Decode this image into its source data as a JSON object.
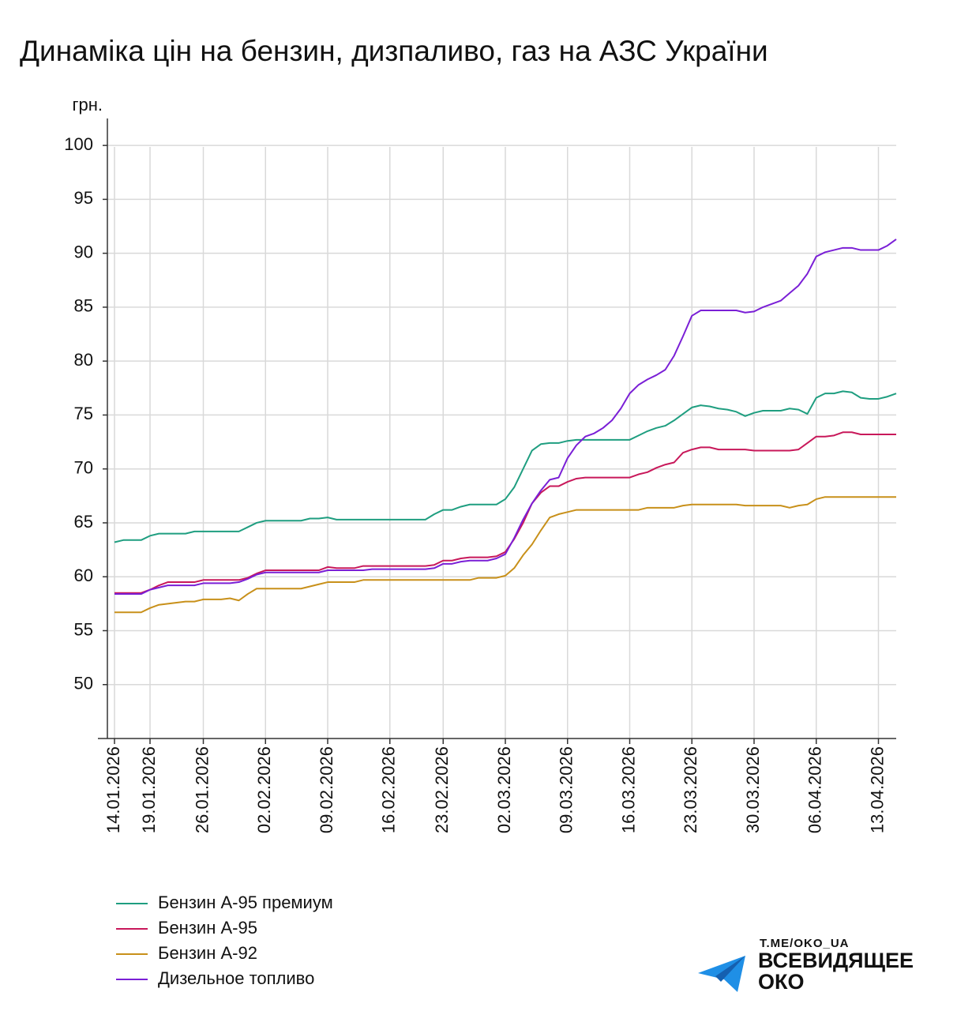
{
  "chart_data": {
    "type": "line",
    "title": "Динаміка цін на бензин, дизпаливо, газ на АЗС України",
    "y_label": "грн.",
    "categories": [
      "14.01.2026",
      null,
      null,
      null,
      "19.01.2026",
      null,
      null,
      null,
      null,
      null,
      "26.01.2026",
      null,
      null,
      null,
      null,
      null,
      null,
      "02.02.2026",
      null,
      null,
      null,
      null,
      null,
      null,
      "09.02.2026",
      null,
      null,
      null,
      null,
      null,
      null,
      "16.02.2026",
      null,
      null,
      null,
      null,
      null,
      "23.02.2026",
      null,
      null,
      null,
      null,
      null,
      null,
      "02.03.2026",
      null,
      null,
      null,
      null,
      null,
      null,
      "09.03.2026",
      null,
      null,
      null,
      null,
      null,
      null,
      "16.03.2026",
      null,
      null,
      null,
      null,
      null,
      null,
      "23.03.2026",
      null,
      null,
      null,
      null,
      null,
      null,
      "30.03.2026",
      null,
      null,
      null,
      null,
      null,
      null,
      "06.04.2026",
      null,
      null,
      null,
      null,
      null,
      null,
      "13.04.2026",
      null,
      null
    ],
    "series": [
      {
        "name": "Бензин А-95 премиум",
        "color": "#1f9e80",
        "values": [
          63.2,
          63.4,
          63.4,
          63.4,
          63.8,
          64.0,
          64.0,
          64.0,
          64.0,
          64.2,
          64.2,
          64.2,
          64.2,
          64.2,
          64.2,
          64.6,
          65.0,
          65.2,
          65.2,
          65.2,
          65.2,
          65.2,
          65.4,
          65.4,
          65.5,
          65.3,
          65.3,
          65.3,
          65.3,
          65.3,
          65.3,
          65.3,
          65.3,
          65.3,
          65.3,
          65.3,
          65.8,
          66.2,
          66.2,
          66.5,
          66.7,
          66.7,
          66.7,
          66.7,
          67.2,
          68.3,
          70.0,
          71.7,
          72.3,
          72.4,
          72.4,
          72.6,
          72.7,
          72.7,
          72.7,
          72.7,
          72.7,
          72.7,
          72.7,
          73.1,
          73.5,
          73.8,
          74.0,
          74.5,
          75.1,
          75.7,
          75.9,
          75.8,
          75.6,
          75.5,
          75.3,
          74.9,
          75.2,
          75.4,
          75.4,
          75.4,
          75.6,
          75.5,
          75.1,
          76.6,
          77.0,
          77.0,
          77.2,
          77.1,
          76.6,
          76.5,
          76.5,
          76.7,
          77.0
        ]
      },
      {
        "name": "Бензин А-95",
        "color": "#c8185a",
        "values": [
          58.5,
          58.5,
          58.5,
          58.5,
          58.8,
          59.2,
          59.5,
          59.5,
          59.5,
          59.5,
          59.7,
          59.7,
          59.7,
          59.7,
          59.7,
          59.9,
          60.3,
          60.6,
          60.6,
          60.6,
          60.6,
          60.6,
          60.6,
          60.6,
          60.9,
          60.8,
          60.8,
          60.8,
          61.0,
          61.0,
          61.0,
          61.0,
          61.0,
          61.0,
          61.0,
          61.0,
          61.1,
          61.5,
          61.5,
          61.7,
          61.8,
          61.8,
          61.8,
          61.9,
          62.3,
          63.5,
          65.0,
          66.8,
          67.8,
          68.4,
          68.4,
          68.8,
          69.1,
          69.2,
          69.2,
          69.2,
          69.2,
          69.2,
          69.2,
          69.5,
          69.7,
          70.1,
          70.4,
          70.6,
          71.5,
          71.8,
          72.0,
          72.0,
          71.8,
          71.8,
          71.8,
          71.8,
          71.7,
          71.7,
          71.7,
          71.7,
          71.7,
          71.8,
          72.4,
          73.0,
          73.0,
          73.1,
          73.4,
          73.4,
          73.2,
          73.2,
          73.2,
          73.2,
          73.2
        ]
      },
      {
        "name": "Бензин А-92",
        "color": "#c8901a",
        "values": [
          56.7,
          56.7,
          56.7,
          56.7,
          57.1,
          57.4,
          57.5,
          57.6,
          57.7,
          57.7,
          57.9,
          57.9,
          57.9,
          58.0,
          57.8,
          58.4,
          58.9,
          58.9,
          58.9,
          58.9,
          58.9,
          58.9,
          59.1,
          59.3,
          59.5,
          59.5,
          59.5,
          59.5,
          59.7,
          59.7,
          59.7,
          59.7,
          59.7,
          59.7,
          59.7,
          59.7,
          59.7,
          59.7,
          59.7,
          59.7,
          59.7,
          59.9,
          59.9,
          59.9,
          60.1,
          60.8,
          62.0,
          63.0,
          64.3,
          65.5,
          65.8,
          66.0,
          66.2,
          66.2,
          66.2,
          66.2,
          66.2,
          66.2,
          66.2,
          66.2,
          66.4,
          66.4,
          66.4,
          66.4,
          66.6,
          66.7,
          66.7,
          66.7,
          66.7,
          66.7,
          66.7,
          66.6,
          66.6,
          66.6,
          66.6,
          66.6,
          66.4,
          66.6,
          66.7,
          67.2,
          67.4,
          67.4,
          67.4,
          67.4,
          67.4,
          67.4,
          67.4,
          67.4,
          67.4
        ]
      },
      {
        "name": "Дизельное топливо",
        "color": "#7a1fd6",
        "values": [
          58.4,
          58.4,
          58.4,
          58.4,
          58.8,
          59.0,
          59.2,
          59.2,
          59.2,
          59.2,
          59.4,
          59.4,
          59.4,
          59.4,
          59.5,
          59.8,
          60.2,
          60.4,
          60.4,
          60.4,
          60.4,
          60.4,
          60.4,
          60.4,
          60.6,
          60.6,
          60.6,
          60.6,
          60.6,
          60.7,
          60.7,
          60.7,
          60.7,
          60.7,
          60.7,
          60.7,
          60.8,
          61.2,
          61.2,
          61.4,
          61.5,
          61.5,
          61.5,
          61.7,
          62.1,
          63.6,
          65.3,
          66.8,
          68.0,
          69.0,
          69.2,
          71.0,
          72.2,
          73.0,
          73.3,
          73.8,
          74.5,
          75.6,
          77.0,
          77.8,
          78.3,
          78.7,
          79.2,
          80.5,
          82.3,
          84.2,
          84.7,
          84.7,
          84.7,
          84.7,
          84.7,
          84.5,
          84.6,
          85.0,
          85.3,
          85.6,
          86.3,
          87.0,
          88.1,
          89.7,
          90.1,
          90.3,
          90.5,
          90.5,
          90.3,
          90.3,
          90.3,
          90.7,
          91.3
        ]
      }
    ],
    "ylim": [
      45,
      102.5
    ],
    "yticks": [
      50,
      55,
      60,
      65,
      70,
      75,
      80,
      85,
      90,
      95,
      100
    ],
    "grid": true,
    "legend": "bottom-left",
    "watermark": {
      "url": "T.ME/OKO_UA",
      "lines": [
        "ВСЕВИДЯЩЕЕ",
        "ОКО"
      ]
    }
  }
}
